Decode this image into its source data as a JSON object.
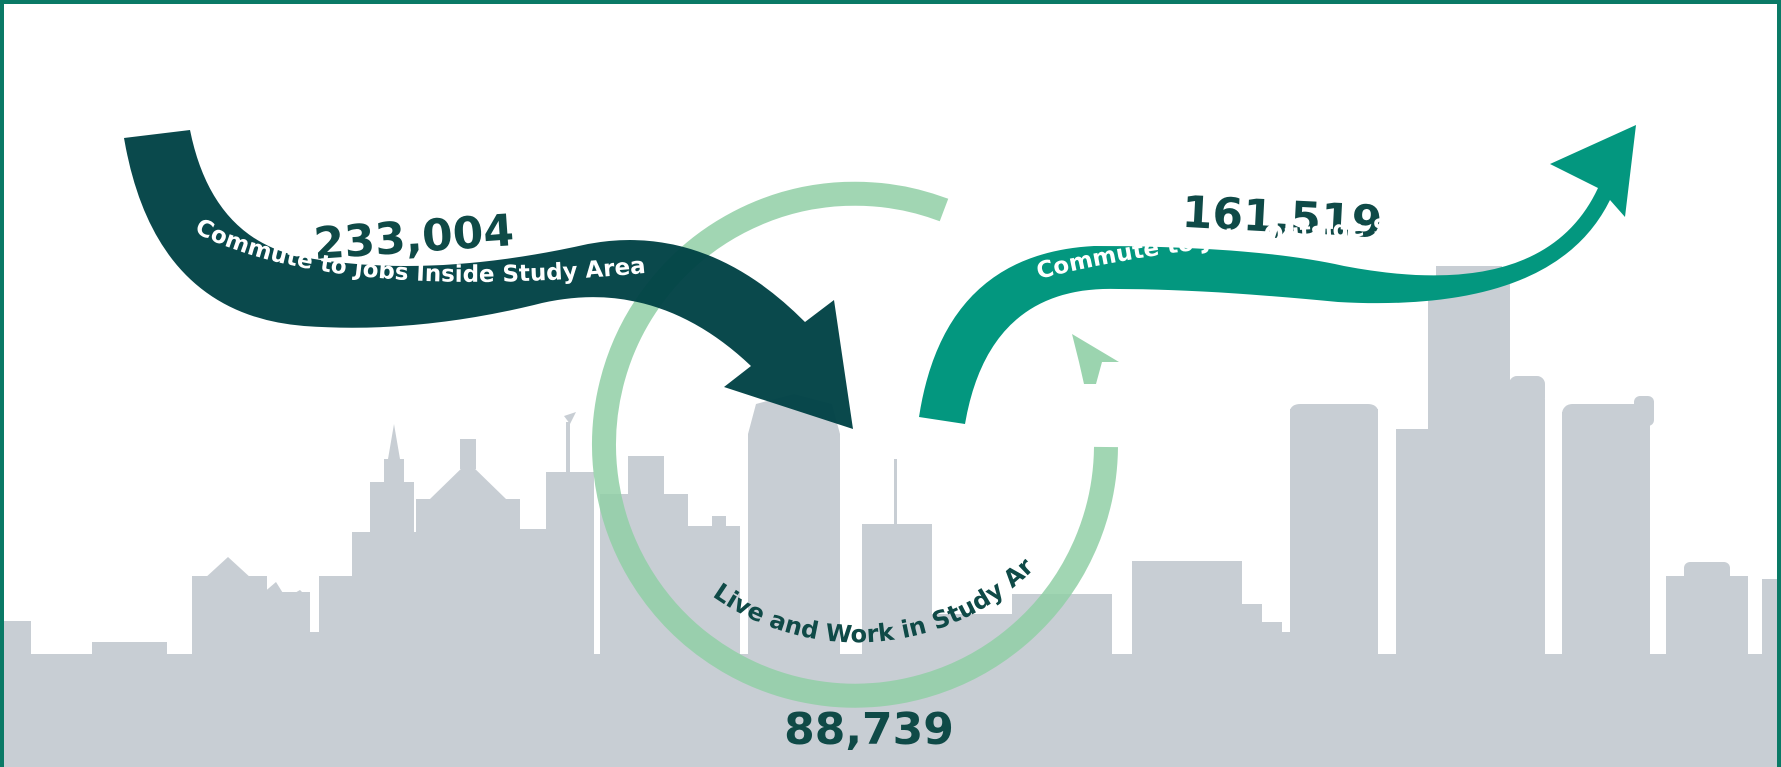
{
  "colors": {
    "frame": "#0a7a66",
    "dark_teal": "#004245",
    "teal": "#03977f",
    "light_green": "#90cfa6",
    "skyline": "#c8ced4",
    "number_text": "#0f4a47"
  },
  "flows": [
    {
      "id": "inside",
      "value": "233,004",
      "label": "Commute to Jobs Inside Study Area"
    },
    {
      "id": "outside",
      "value": "161,519",
      "label": "Commute to Jobs Outside Study Area"
    },
    {
      "id": "live_work",
      "value": "88,739",
      "label": "Live and Work in Study Area"
    }
  ]
}
